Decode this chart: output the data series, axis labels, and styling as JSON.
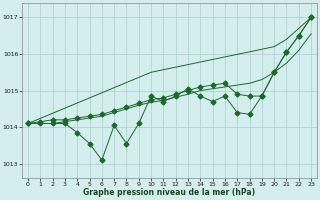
{
  "x": [
    0,
    1,
    2,
    3,
    4,
    5,
    6,
    7,
    8,
    9,
    10,
    11,
    12,
    13,
    14,
    15,
    16,
    17,
    18,
    19,
    20,
    21,
    22,
    23
  ],
  "line_jagged": [
    1014.1,
    1014.1,
    1014.1,
    1014.1,
    1013.85,
    1013.55,
    1013.1,
    1014.05,
    1013.55,
    1014.1,
    1014.85,
    1014.7,
    1014.85,
    1015.05,
    1014.85,
    1014.7,
    1014.85,
    1014.4,
    1014.35,
    1014.85,
    1015.5,
    1016.05,
    1016.5,
    1017.0
  ],
  "line_smooth": [
    1014.1,
    1014.1,
    1014.1,
    1014.15,
    1014.2,
    1014.25,
    1014.3,
    1014.4,
    1014.5,
    1014.6,
    1014.68,
    1014.73,
    1014.82,
    1014.9,
    1015.0,
    1015.05,
    1015.1,
    1015.15,
    1015.2,
    1015.3,
    1015.5,
    1015.75,
    1016.1,
    1016.55
  ],
  "line_upper": [
    1014.1,
    1014.15,
    1014.2,
    1014.2,
    1014.25,
    1014.3,
    1014.35,
    1014.45,
    1014.55,
    1014.65,
    1014.75,
    1014.8,
    1014.9,
    1015.0,
    1015.1,
    1015.15,
    1015.2,
    1014.9,
    1014.85,
    1014.85,
    1015.5,
    1016.05,
    1016.5,
    1017.0
  ],
  "line_straight": [
    1014.1,
    1014.24,
    1014.38,
    1014.52,
    1014.66,
    1014.8,
    1014.94,
    1015.08,
    1015.22,
    1015.36,
    1015.5,
    1015.57,
    1015.64,
    1015.71,
    1015.78,
    1015.85,
    1015.92,
    1015.99,
    1016.06,
    1016.13,
    1016.2,
    1016.4,
    1016.7,
    1017.0
  ],
  "xlabel": "Graphe pression niveau de la mer (hPa)",
  "ylim": [
    1012.6,
    1017.4
  ],
  "xlim": [
    -0.5,
    23.5
  ],
  "yticks": [
    1013,
    1014,
    1015,
    1016,
    1017
  ],
  "xticks": [
    0,
    1,
    2,
    3,
    4,
    5,
    6,
    7,
    8,
    9,
    10,
    11,
    12,
    13,
    14,
    15,
    16,
    17,
    18,
    19,
    20,
    21,
    22,
    23
  ],
  "bg_color": "#d4eded",
  "grid_color": "#aacece",
  "line_color": "#1a6b2a",
  "marker_size": 2.5
}
